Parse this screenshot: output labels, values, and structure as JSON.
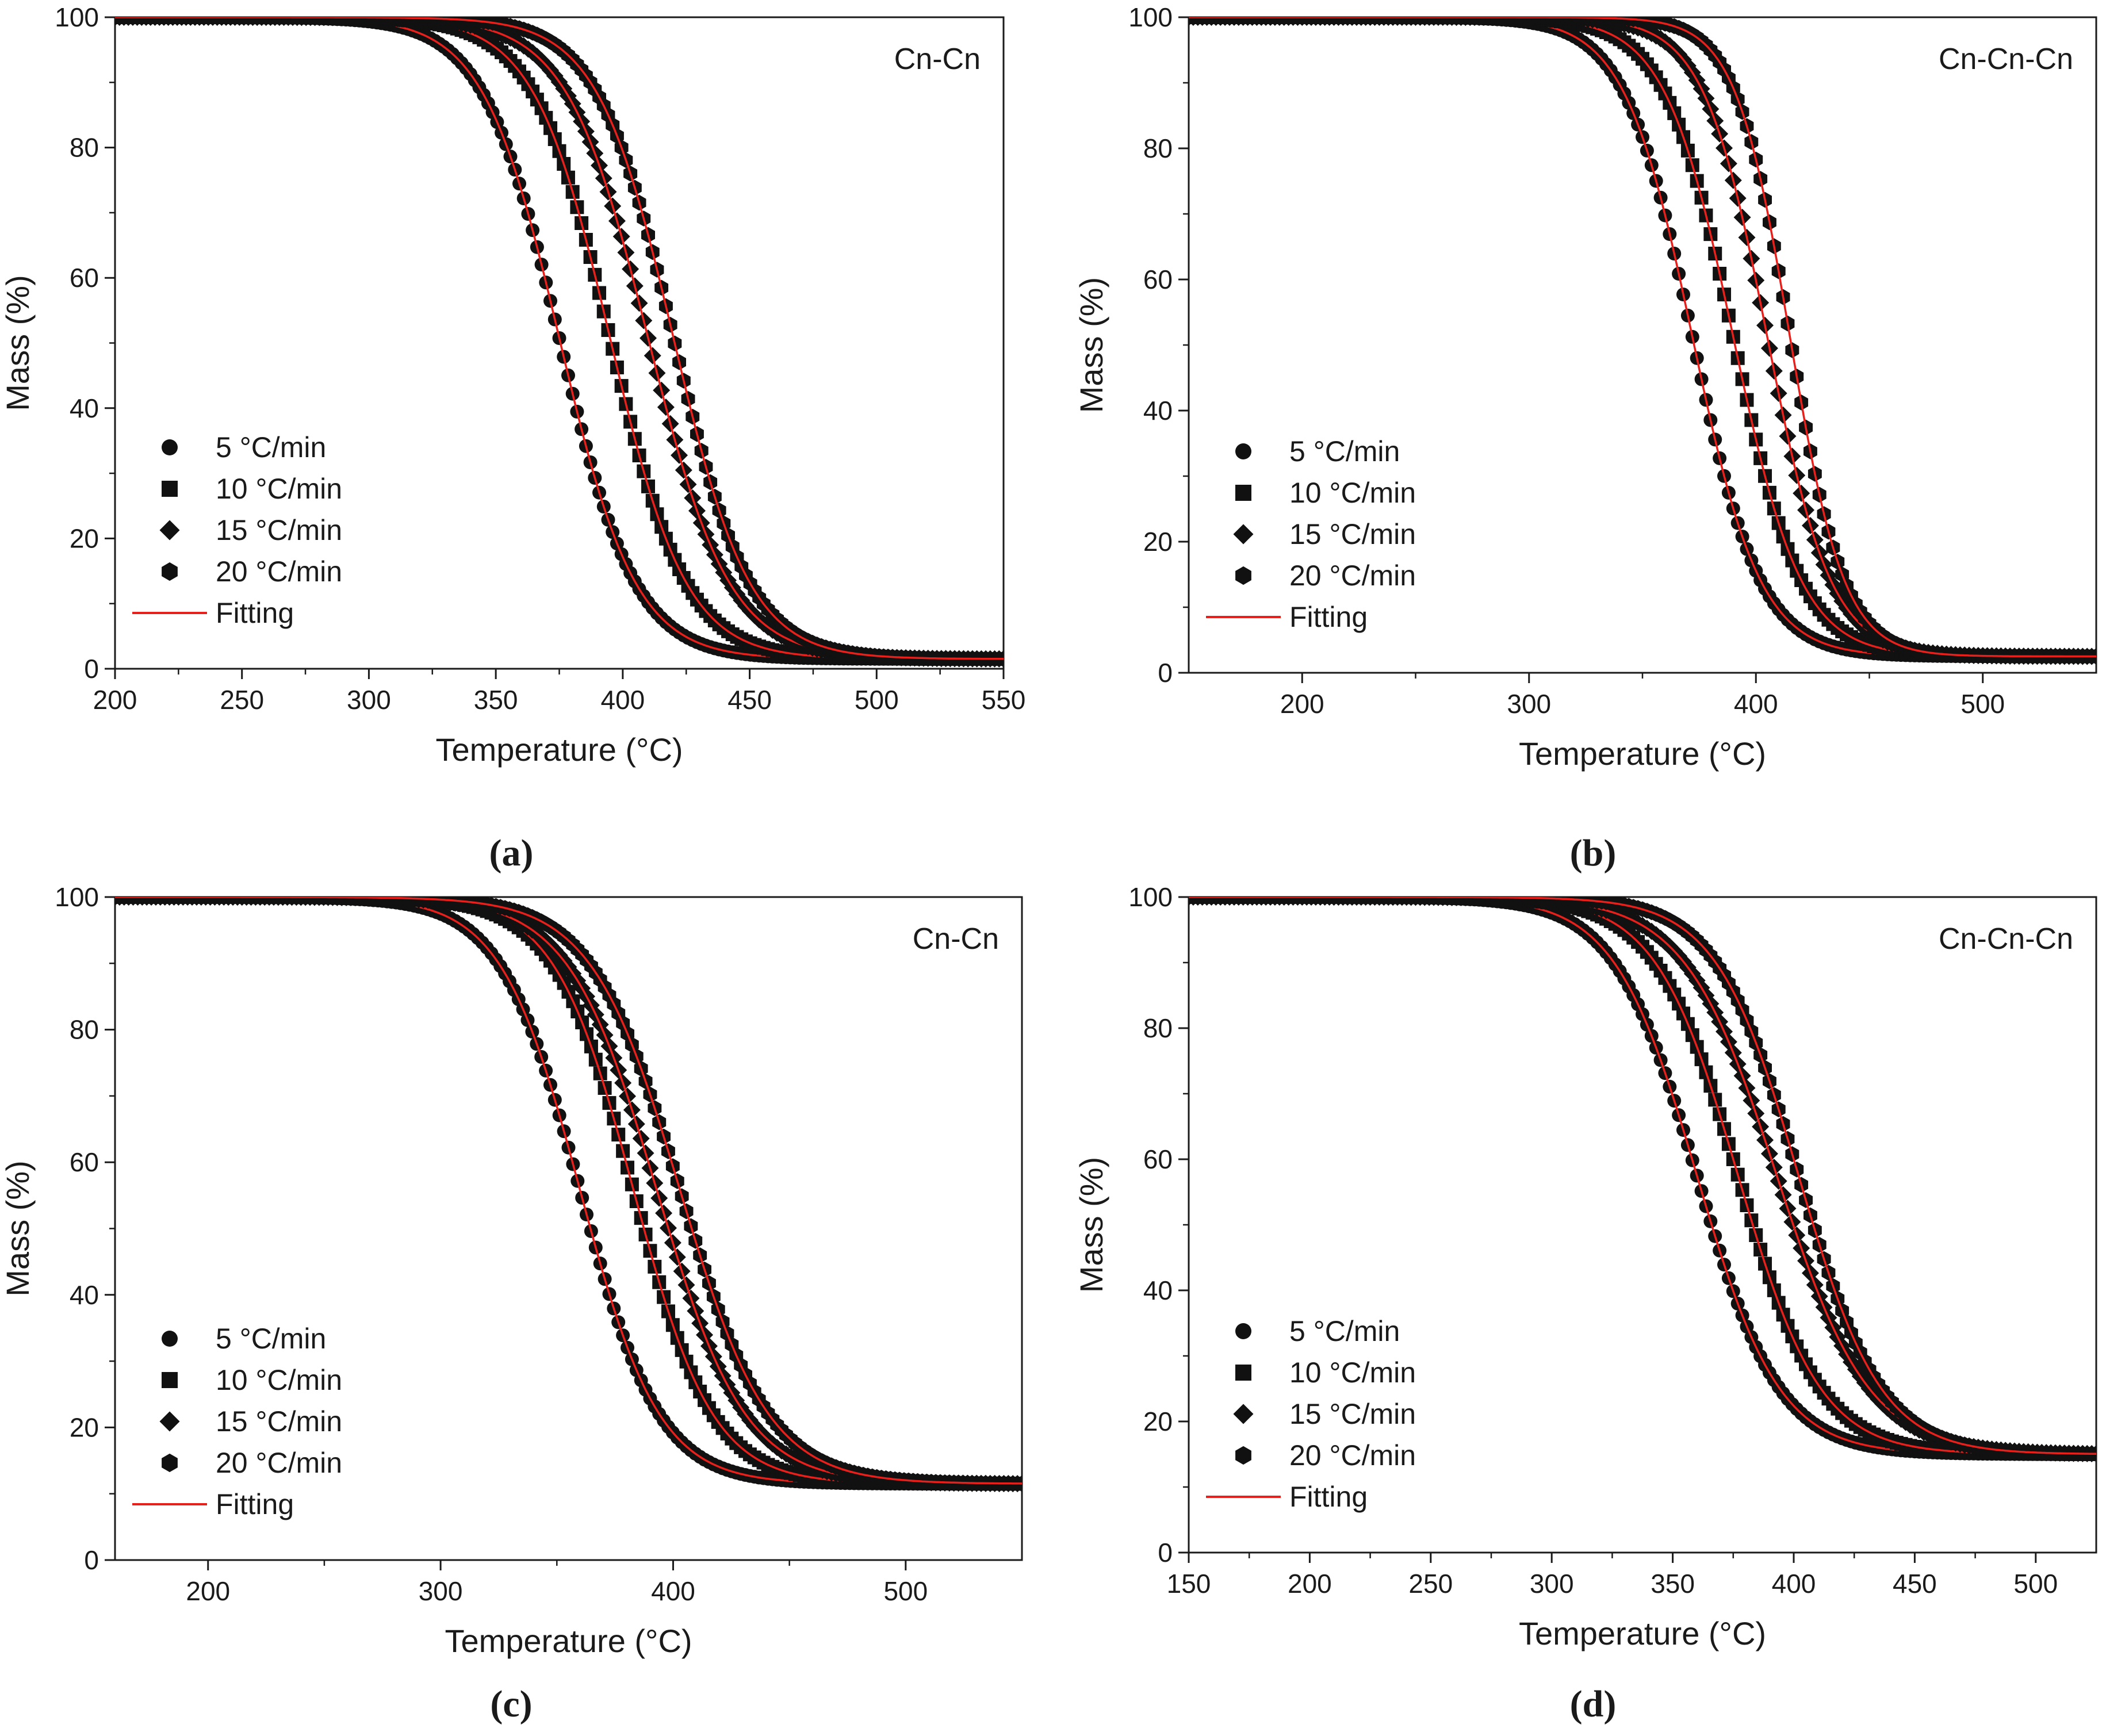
{
  "figure": {
    "panel_labels": [
      "(a)",
      "(b)",
      "(c)",
      "(d)"
    ]
  },
  "chart_data": [
    {
      "panel": "(a)",
      "type": "scatter",
      "title": "Cn-Cn",
      "xlabel": "Temperature (°C)",
      "ylabel": "Mass (%)",
      "xlim": [
        200,
        550
      ],
      "ylim": [
        0,
        100
      ],
      "xticks": [
        "200",
        "250",
        "300",
        "350",
        "400",
        "450",
        "500",
        "550"
      ],
      "yticks": [
        "0",
        "20",
        "40",
        "60",
        "80",
        "100"
      ],
      "legend_position": "bottom-left",
      "fit_color": "#e8201c",
      "marker_color": "#111111",
      "series": [
        {
          "name": "5 °C/min",
          "marker": "circle",
          "t_half": 375,
          "width": 15,
          "residual": 1.5
        },
        {
          "name": "10 °C/min",
          "marker": "square",
          "t_half": 395,
          "width": 15,
          "residual": 1.5
        },
        {
          "name": "15 °C/min",
          "marker": "diamond",
          "t_half": 410,
          "width": 16,
          "residual": 1.5
        },
        {
          "name": "20 °C/min",
          "marker": "hexagon",
          "t_half": 420,
          "width": 15,
          "residual": 1.5
        }
      ],
      "fit_label": "Fitting"
    },
    {
      "panel": "(b)",
      "type": "scatter",
      "title": "Cn-Cn-Cn",
      "xlabel": "Temperature (°C)",
      "ylabel": "Mass (%)",
      "xlim": [
        150,
        550
      ],
      "ylim": [
        0,
        100
      ],
      "xticks": [
        "200",
        "300",
        "400",
        "500"
      ],
      "yticks": [
        "0",
        "20",
        "40",
        "60",
        "80",
        "100"
      ],
      "legend_position": "bottom-left",
      "fit_color": "#e8201c",
      "marker_color": "#111111",
      "series": [
        {
          "name": "5 °C/min",
          "marker": "circle",
          "t_half": 372,
          "width": 15,
          "residual": 2.5
        },
        {
          "name": "10 °C/min",
          "marker": "square",
          "t_half": 390,
          "width": 15,
          "residual": 2.5
        },
        {
          "name": "15 °C/min",
          "marker": "diamond",
          "t_half": 405,
          "width": 14,
          "residual": 2.5
        },
        {
          "name": "20 °C/min",
          "marker": "hexagon",
          "t_half": 415,
          "width": 12,
          "residual": 2.5
        }
      ],
      "fit_label": "Fitting"
    },
    {
      "panel": "(c)",
      "type": "scatter",
      "title": "Cn-Cn",
      "xlabel": "Temperature (°C)",
      "ylabel": "Mass (%)",
      "xlim": [
        160,
        550
      ],
      "ylim": [
        0,
        100
      ],
      "xticks": [
        "200",
        "300",
        "400",
        "500"
      ],
      "yticks": [
        "0",
        "20",
        "40",
        "60",
        "80",
        "100"
      ],
      "legend_position": "bottom-left",
      "fit_color": "#e8201c",
      "marker_color": "#111111",
      "series": [
        {
          "name": "5 °C/min",
          "marker": "circle",
          "t_half": 360,
          "width": 17,
          "residual": 11.5
        },
        {
          "name": "10 °C/min",
          "marker": "square",
          "t_half": 383,
          "width": 17,
          "residual": 11.5
        },
        {
          "name": "15 °C/min",
          "marker": "diamond",
          "t_half": 393,
          "width": 19,
          "residual": 11.5
        },
        {
          "name": "20 °C/min",
          "marker": "hexagon",
          "t_half": 403,
          "width": 19,
          "residual": 11.5
        }
      ],
      "fit_label": "Fitting"
    },
    {
      "panel": "(d)",
      "type": "scatter",
      "title": "Cn-Cn-Cn",
      "xlabel": "Temperature (°C)",
      "ylabel": "Mass (%)",
      "xlim": [
        150,
        525
      ],
      "ylim": [
        0,
        100
      ],
      "xticks": [
        "150",
        "200",
        "250",
        "300",
        "350",
        "400",
        "450",
        "500"
      ],
      "yticks": [
        "0",
        "20",
        "40",
        "60",
        "80",
        "100"
      ],
      "legend_position": "bottom-left",
      "fit_color": "#e8201c",
      "marker_color": "#111111",
      "series": [
        {
          "name": "5 °C/min",
          "marker": "circle",
          "t_half": 360,
          "width": 17,
          "residual": 15
        },
        {
          "name": "10 °C/min",
          "marker": "square",
          "t_half": 377,
          "width": 17,
          "residual": 15
        },
        {
          "name": "15 °C/min",
          "marker": "diamond",
          "t_half": 393,
          "width": 19,
          "residual": 15
        },
        {
          "name": "20 °C/min",
          "marker": "hexagon",
          "t_half": 402,
          "width": 17,
          "residual": 15
        }
      ],
      "fit_label": "Fitting"
    }
  ]
}
